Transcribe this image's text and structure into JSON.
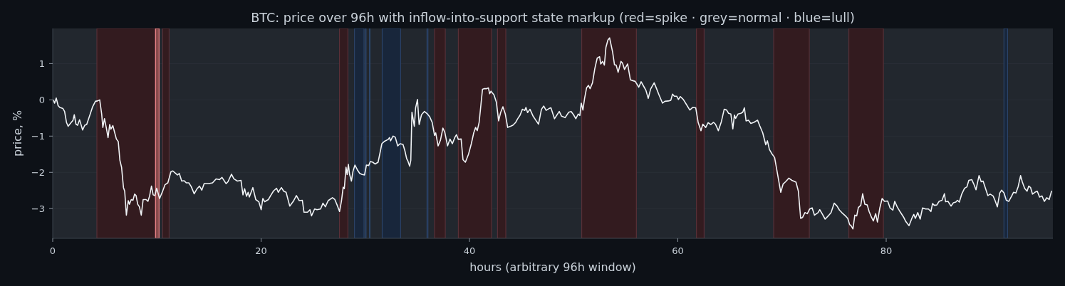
{
  "chart_data": {
    "type": "line",
    "title": "BTC: price over 96h with inflow-into-support state markup (red=spike · grey=normal · blue=lull)",
    "xlabel": "hours (arbitrary 96h window)",
    "ylabel": "price, %",
    "color": "#f0f3f6",
    "x": [
      0.07,
      0.18,
      0.34,
      0.52,
      0.68,
      0.98,
      1.14,
      1.32,
      1.48,
      1.78,
      1.94,
      2.07,
      2.23,
      2.39,
      2.58,
      2.87,
      3.08,
      3.26,
      3.6,
      3.83,
      4.1,
      4.28,
      4.51,
      4.7,
      4.81,
      4.97,
      5.15,
      5.31,
      5.47,
      5.58,
      5.77,
      6.11,
      6.29,
      6.45,
      6.61,
      6.79,
      6.91,
      7.07,
      7.25,
      7.36,
      7.54,
      7.7,
      7.86,
      8.0,
      8.16,
      8.32,
      8.5,
      8.68,
      8.96,
      9.14,
      9.3,
      9.48,
      9.64,
      9.8,
      9.98,
      10.26,
      10.55,
      10.78,
      11.05,
      11.35,
      11.53,
      11.81,
      11.97,
      12.15,
      12.38,
      12.61,
      12.83,
      13.06,
      13.29,
      13.58,
      13.86,
      14.09,
      14.31,
      14.54,
      15.0,
      15.34,
      15.68,
      16.02,
      16.25,
      16.64,
      16.82,
      17.16,
      17.39,
      17.73,
      18.07,
      18.26,
      18.42,
      18.6,
      18.76,
      18.87,
      19.21,
      19.49,
      19.78,
      20.01,
      20.17,
      20.35,
      20.7,
      20.92,
      21.2,
      21.49,
      21.65,
      21.95,
      22.17,
      22.4,
      22.75,
      23.09,
      23.39,
      23.66,
      23.96,
      24.12,
      24.46,
      24.69,
      24.84,
      25.14,
      25.37,
      25.71,
      25.94,
      26.17,
      26.44,
      26.85,
      27.08,
      27.31,
      27.53,
      27.72,
      27.88,
      27.99,
      28.15,
      28.26,
      28.38,
      28.49,
      28.67,
      28.83,
      29.01,
      29.24,
      29.47,
      29.7,
      29.93,
      30.11,
      30.33,
      30.49,
      30.72,
      30.95,
      31.23,
      31.41,
      31.59,
      31.86,
      32.21,
      32.32,
      32.43,
      32.66,
      32.88,
      33.11,
      33.34,
      33.62,
      33.8,
      33.98,
      34.07,
      34.26,
      34.37,
      34.48,
      34.71,
      34.83,
      35.01,
      35.17,
      35.4,
      35.67,
      35.97,
      36.19,
      36.42,
      36.65,
      36.76,
      36.99,
      37.22,
      37.45,
      37.63,
      37.9,
      38.13,
      38.36,
      38.59,
      38.75,
      38.93,
      39.2,
      39.38,
      39.61,
      39.91,
      40.18,
      40.41,
      40.59,
      40.75,
      40.93,
      41.25,
      41.44,
      41.66,
      41.82,
      41.94,
      42.07,
      42.35,
      42.58,
      42.8,
      42.99,
      43.21,
      43.44,
      43.67,
      43.94,
      44.17,
      44.44,
      44.63,
      44.86,
      45.08,
      45.31,
      45.42,
      45.58,
      45.81,
      46.11,
      46.34,
      46.63,
      46.91,
      47.13,
      47.36,
      47.64,
      47.82,
      48.16,
      48.39,
      48.62,
      48.84,
      49.18,
      49.53,
      49.76,
      49.99,
      50.21,
      50.44,
      50.6,
      50.73,
      50.89,
      51.05,
      51.24,
      51.42,
      51.58,
      51.81,
      52.03,
      52.26,
      52.49,
      52.6,
      52.79,
      52.95,
      53.1,
      53.29,
      53.45,
      53.74,
      53.92,
      54.08,
      54.27,
      54.54,
      54.7,
      54.88,
      55.18,
      55.45,
      55.68,
      55.91,
      56.25,
      56.48,
      56.71,
      56.93,
      57.16,
      57.39,
      57.73,
      57.96,
      58.19,
      58.53,
      58.76,
      59.1,
      59.33,
      59.49,
      59.67,
      59.9,
      60.06,
      60.24,
      60.53,
      60.81,
      61.15,
      61.42,
      61.72,
      61.95,
      62.22,
      62.4,
      62.68,
      62.91,
      63.16,
      63.43,
      63.61,
      63.89,
      64.18,
      64.45,
      64.68,
      64.87,
      65.09,
      65.28,
      65.43,
      65.55,
      65.78,
      66.05,
      66.23,
      66.39,
      66.55,
      66.78,
      67.01,
      67.3,
      67.65,
      67.87,
      68.15,
      68.44,
      68.6,
      68.79,
      69.06,
      69.29,
      69.58,
      69.88,
      70.11,
      70.34,
      70.65,
      70.95,
      71.34,
      71.57,
      71.79,
      71.98,
      72.2,
      72.43,
      72.66,
      72.89,
      73.12,
      73.46,
      73.62,
      73.85,
      74.14,
      74.44,
      74.71,
      75.01,
      75.28,
      75.51,
      75.74,
      76.08,
      76.31,
      76.49,
      76.65,
      76.81,
      76.99,
      77.17,
      77.33,
      77.56,
      77.74,
      77.95,
      78.18,
      78.36,
      78.59,
      78.77,
      78.99,
      79.16,
      79.39,
      79.61,
      79.84,
      80.14,
      80.37,
      80.64,
      80.82,
      81.05,
      81.32,
      81.66,
      81.89,
      82.19,
      82.46,
      82.65,
      82.8,
      83.03,
      83.26,
      83.49,
      83.78,
      84.06,
      84.29,
      84.45,
      84.63,
      84.86,
      85.08,
      85.36,
      85.59,
      85.7,
      85.93,
      86.22,
      86.45,
      86.68,
      86.84,
      87.02,
      87.25,
      87.52,
      87.75,
      87.93,
      88.21,
      88.39,
      88.62,
      88.91,
      89.12,
      89.3,
      89.53,
      89.76,
      89.98,
      90.26,
      90.44,
      90.67,
      90.9,
      91.08,
      91.31,
      91.53,
      91.76,
      92.03,
      92.22,
      92.45,
      92.67,
      92.9,
      93.06,
      93.29,
      93.52,
      93.68,
      93.86,
      94.04,
      94.27,
      94.5,
      94.72,
      94.95,
      95.18,
      95.41,
      95.64,
      95.87
    ],
    "values": [
      -0.01,
      -0.09,
      0.05,
      -0.16,
      -0.21,
      -0.24,
      -0.32,
      -0.62,
      -0.73,
      -0.62,
      -0.57,
      -0.41,
      -0.67,
      -0.7,
      -0.55,
      -0.83,
      -0.7,
      -0.68,
      -0.39,
      -0.19,
      -0.04,
      -0.03,
      0.0,
      -0.39,
      -0.76,
      -0.52,
      -0.78,
      -1.04,
      -0.68,
      -0.81,
      -0.71,
      -1.08,
      -1.15,
      -1.67,
      -1.86,
      -2.42,
      -2.52,
      -3.18,
      -2.78,
      -2.88,
      -2.75,
      -2.77,
      -2.6,
      -2.64,
      -2.88,
      -2.95,
      -3.18,
      -2.75,
      -2.75,
      -2.8,
      -2.65,
      -2.38,
      -2.62,
      -2.64,
      -2.44,
      -2.72,
      -2.52,
      -2.34,
      -2.29,
      -1.98,
      -1.96,
      -2.03,
      -2.07,
      -2.03,
      -2.24,
      -2.23,
      -2.29,
      -2.29,
      -2.39,
      -2.59,
      -2.45,
      -2.38,
      -2.49,
      -2.31,
      -2.31,
      -2.29,
      -2.18,
      -2.2,
      -2.14,
      -2.31,
      -2.26,
      -2.05,
      -2.18,
      -2.24,
      -2.22,
      -2.62,
      -2.45,
      -2.66,
      -2.55,
      -2.68,
      -2.42,
      -2.75,
      -2.81,
      -3.03,
      -2.72,
      -2.81,
      -2.75,
      -2.64,
      -2.51,
      -2.44,
      -2.55,
      -2.42,
      -2.52,
      -2.55,
      -2.93,
      -2.8,
      -2.64,
      -2.78,
      -2.77,
      -3.1,
      -3.1,
      -3.03,
      -3.2,
      -3.01,
      -3.03,
      -3.01,
      -2.85,
      -2.95,
      -2.78,
      -2.7,
      -2.75,
      -2.91,
      -3.08,
      -2.78,
      -2.41,
      -2.45,
      -1.86,
      -2.06,
      -1.78,
      -2.05,
      -2.24,
      -1.96,
      -1.8,
      -1.93,
      -2.03,
      -2.06,
      -2.07,
      -1.8,
      -1.81,
      -1.7,
      -1.72,
      -1.77,
      -1.72,
      -1.47,
      -1.21,
      -1.14,
      -1.09,
      -1.04,
      -1.13,
      -1.0,
      -1.03,
      -1.27,
      -1.21,
      -1.23,
      -1.4,
      -1.63,
      -1.67,
      -1.83,
      -1.67,
      -0.34,
      -0.73,
      -0.22,
      0.01,
      -0.68,
      -0.41,
      -0.32,
      -0.39,
      -0.47,
      -0.62,
      -0.98,
      -0.91,
      -1.27,
      -1.11,
      -0.78,
      -0.89,
      -1.27,
      -1.08,
      -1.21,
      -1.04,
      -0.96,
      -1.09,
      -1.08,
      -1.65,
      -1.72,
      -1.5,
      -1.21,
      -0.91,
      -0.76,
      -0.85,
      -0.62,
      0.29,
      0.31,
      0.31,
      0.33,
      0.17,
      0.24,
      0.14,
      -0.06,
      -0.58,
      -0.35,
      -0.19,
      -0.39,
      -0.76,
      -0.73,
      -0.7,
      -0.62,
      -0.52,
      -0.42,
      -0.26,
      -0.29,
      -0.21,
      -0.35,
      -0.26,
      -0.45,
      -0.55,
      -0.67,
      -0.26,
      -0.17,
      -0.29,
      -0.24,
      -0.22,
      -0.52,
      -0.42,
      -0.32,
      -0.45,
      -0.49,
      -0.34,
      -0.32,
      -0.41,
      -0.52,
      -0.39,
      -0.43,
      -0.09,
      -0.28,
      0.04,
      0.33,
      0.4,
      0.31,
      0.47,
      0.86,
      1.15,
      1.19,
      0.99,
      1.06,
      0.96,
      1.45,
      1.65,
      1.71,
      1.32,
      0.97,
      0.96,
      0.76,
      1.06,
      1.01,
      0.84,
      0.99,
      0.55,
      0.53,
      0.51,
      0.35,
      0.5,
      0.38,
      0.27,
      0.04,
      0.3,
      0.47,
      0.31,
      0.14,
      -0.09,
      -0.04,
      -0.03,
      -0.01,
      0.16,
      0.1,
      0.1,
      0.01,
      0.09,
      0.01,
      -0.12,
      -0.28,
      -0.21,
      -0.22,
      -0.62,
      -0.85,
      -0.67,
      -0.76,
      -0.63,
      -0.68,
      -0.62,
      -0.67,
      -0.85,
      -0.6,
      -0.26,
      -0.28,
      -0.37,
      -0.39,
      -0.8,
      -0.42,
      -0.51,
      -0.39,
      -0.37,
      -0.34,
      -0.22,
      -0.58,
      -0.56,
      -0.65,
      -0.62,
      -0.56,
      -0.72,
      -0.91,
      -1.24,
      -1.13,
      -1.37,
      -1.5,
      -1.59,
      -2.06,
      -2.55,
      -2.32,
      -2.26,
      -2.16,
      -2.22,
      -2.27,
      -2.52,
      -3.27,
      -3.24,
      -3.11,
      -3.14,
      -3.01,
      -2.98,
      -3.18,
      -3.11,
      -3.03,
      -3.14,
      -3.29,
      -3.2,
      -3.11,
      -2.85,
      -2.93,
      -3.04,
      -3.11,
      -3.2,
      -3.27,
      -3.44,
      -3.48,
      -3.56,
      -3.18,
      -3.2,
      -2.97,
      -2.91,
      -2.59,
      -2.88,
      -2.9,
      -3.08,
      -3.24,
      -3.34,
      -3.14,
      -3.37,
      -2.98,
      -2.72,
      -2.8,
      -2.79,
      -2.98,
      -3.04,
      -2.8,
      -2.95,
      -3.08,
      -3.23,
      -3.36,
      -3.47,
      -3.27,
      -3.16,
      -3.27,
      -3.11,
      -3.29,
      -2.98,
      -3.01,
      -3.01,
      -3.08,
      -2.86,
      -2.91,
      -2.9,
      -2.8,
      -2.77,
      -2.59,
      -2.81,
      -2.8,
      -2.93,
      -2.84,
      -2.82,
      -2.77,
      -2.82,
      -2.6,
      -2.44,
      -2.4,
      -2.22,
      -2.2,
      -2.31,
      -2.48,
      -2.09,
      -2.26,
      -2.24,
      -2.44,
      -2.64,
      -2.6,
      -2.65,
      -2.77,
      -2.95,
      -2.57,
      -2.49,
      -2.57,
      -2.77,
      -2.8,
      -2.66,
      -2.55,
      -2.57,
      -2.39,
      -2.09,
      -2.26,
      -2.44,
      -2.52,
      -2.38,
      -2.42,
      -2.6,
      -2.55,
      -2.52,
      -2.68,
      -2.65,
      -2.8,
      -2.7,
      -2.75,
      -2.52
    ],
    "xlim": [
      0,
      96
    ],
    "ylim": [
      -3.82,
      1.97
    ],
    "xticks": [
      0,
      20,
      40,
      60,
      80
    ],
    "yticks": [
      {
        "value": -3,
        "label": "−3"
      },
      {
        "value": -2,
        "label": "−2"
      },
      {
        "value": -1,
        "label": "−1"
      },
      0,
      1
    ],
    "grid": "y",
    "bands": [
      {
        "axis": "x",
        "from": 4.24,
        "to": 9.82,
        "color": "#331b1f"
      },
      {
        "axis": "x",
        "from": 9.87,
        "to": 10.21,
        "color": "#8a4b4d"
      },
      {
        "axis": "x",
        "from": 10.55,
        "to": 11.17,
        "color": "#331b1f"
      },
      {
        "axis": "x",
        "from": 27.53,
        "to": 28.33,
        "color": "#331b1f"
      },
      {
        "axis": "x",
        "from": 28.97,
        "to": 29.88,
        "color": "#18263b"
      },
      {
        "axis": "x",
        "from": 30.0,
        "to": 30.08,
        "color": "#18263b"
      },
      {
        "axis": "x",
        "from": 30.4,
        "to": 30.46,
        "color": "#18263b"
      },
      {
        "axis": "x",
        "from": 31.62,
        "to": 33.39,
        "color": "#18263b"
      },
      {
        "axis": "x",
        "from": 35.92,
        "to": 36.02,
        "color": "#18263b"
      },
      {
        "axis": "x",
        "from": 36.65,
        "to": 37.68,
        "color": "#331b1f"
      },
      {
        "axis": "x",
        "from": 38.93,
        "to": 42.12,
        "color": "#331b1f"
      },
      {
        "axis": "x",
        "from": 42.69,
        "to": 43.49,
        "color": "#331b1f"
      },
      {
        "axis": "x",
        "from": 50.78,
        "to": 56.02,
        "color": "#331b1f"
      },
      {
        "axis": "x",
        "from": 61.79,
        "to": 62.52,
        "color": "#331b1f"
      },
      {
        "axis": "x",
        "from": 69.2,
        "to": 72.62,
        "color": "#331b1f"
      },
      {
        "axis": "x",
        "from": 76.42,
        "to": 79.73,
        "color": "#331b1f"
      },
      {
        "axis": "x",
        "from": 91.3,
        "to": 91.65,
        "color": "#18263b"
      }
    ]
  }
}
